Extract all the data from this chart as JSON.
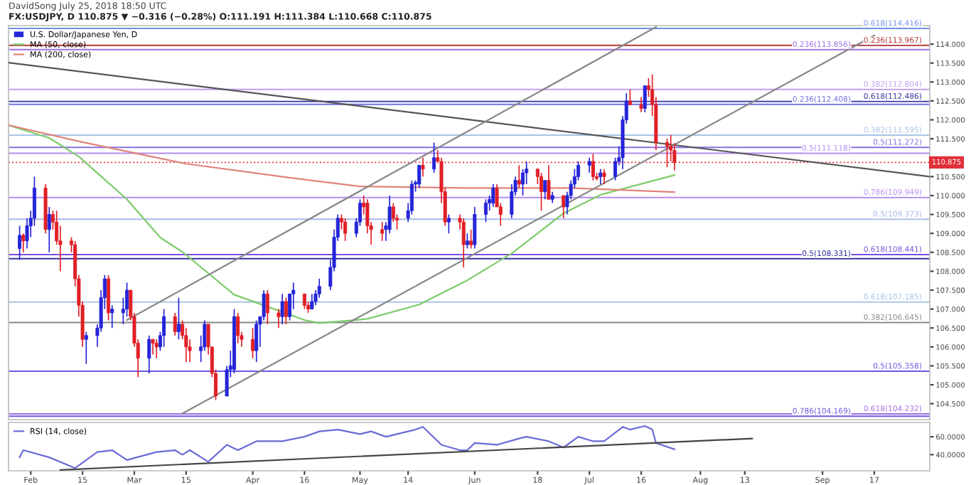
{
  "chart_data": [
    {
      "type": "candlestick",
      "title": "FX:USDJPY, D 110.875 ▼ −0.316 (−0.28%) O:111.191 H:111.384 L:110.668 C:110.875",
      "annotations": [
        "DavidSong July 25, 2018 18:50 UTC"
      ],
      "xlim": [
        "2018-01-26",
        "2018-10-02"
      ],
      "ylim": [
        104.08,
        114.49
      ],
      "yticks": [
        {
          "value": 104.5,
          "label": "104.500"
        },
        {
          "value": 105,
          "label": "105.000"
        },
        {
          "value": 105.5,
          "label": "105.500"
        },
        {
          "value": 106,
          "label": "106.000"
        },
        {
          "value": 106.5,
          "label": "106.500"
        },
        {
          "value": 107,
          "label": "107.000"
        },
        {
          "value": 107.5,
          "label": "107.500"
        },
        {
          "value": 108,
          "label": "108.000"
        },
        {
          "value": 108.5,
          "label": "108.500"
        },
        {
          "value": 109,
          "label": "109.000"
        },
        {
          "value": 109.5,
          "label": "109.500"
        },
        {
          "value": 110,
          "label": "110.000"
        },
        {
          "value": 110.5,
          "label": "110.500"
        },
        {
          "value": 111.5,
          "label": "111.500"
        },
        {
          "value": 112,
          "label": "112.000"
        },
        {
          "value": 112.5,
          "label": "112.500"
        },
        {
          "value": 113,
          "label": "113.000"
        },
        {
          "value": 113.5,
          "label": "113.500"
        },
        {
          "value": 114,
          "label": "114.000"
        }
      ],
      "tick_labels": "y",
      "legend": "top left",
      "series": [
        {
          "type": "candlestick",
          "name": "U.S. Dollar/Japanese Yen, D",
          "x": [
            "2018-01-29",
            "2018-01-30",
            "2018-01-31",
            "2018-02-01",
            "2018-02-02",
            "2018-02-05",
            "2018-02-06",
            "2018-02-07",
            "2018-02-08",
            "2018-02-09",
            "2018-02-12",
            "2018-02-13",
            "2018-02-14",
            "2018-02-15",
            "2018-02-16",
            "2018-02-19",
            "2018-02-20",
            "2018-02-21",
            "2018-02-22",
            "2018-02-23",
            "2018-02-26",
            "2018-02-27",
            "2018-02-28",
            "2018-03-01",
            "2018-03-02",
            "2018-03-05",
            "2018-03-06",
            "2018-03-07",
            "2018-03-08",
            "2018-03-09",
            "2018-03-12",
            "2018-03-13",
            "2018-03-14",
            "2018-03-15",
            "2018-03-16",
            "2018-03-19",
            "2018-03-20",
            "2018-03-21",
            "2018-03-22",
            "2018-03-23",
            "2018-03-26",
            "2018-03-27",
            "2018-03-28",
            "2018-03-29",
            "2018-03-30",
            "2018-04-02",
            "2018-04-03",
            "2018-04-04",
            "2018-04-05",
            "2018-04-06",
            "2018-04-09",
            "2018-04-10",
            "2018-04-11",
            "2018-04-12",
            "2018-04-13",
            "2018-04-16",
            "2018-04-17",
            "2018-04-18",
            "2018-04-19",
            "2018-04-20",
            "2018-04-23",
            "2018-04-24",
            "2018-04-25",
            "2018-04-26",
            "2018-04-27",
            "2018-04-30",
            "2018-05-01",
            "2018-05-02",
            "2018-05-03",
            "2018-05-04",
            "2018-05-07",
            "2018-05-08",
            "2018-05-09",
            "2018-05-10",
            "2018-05-11",
            "2018-05-14",
            "2018-05-15",
            "2018-05-16",
            "2018-05-17",
            "2018-05-18",
            "2018-05-21",
            "2018-05-22",
            "2018-05-23",
            "2018-05-24",
            "2018-05-25",
            "2018-05-28",
            "2018-05-29",
            "2018-05-30",
            "2018-05-31",
            "2018-06-01",
            "2018-06-04",
            "2018-06-05",
            "2018-06-06",
            "2018-06-07",
            "2018-06-08",
            "2018-06-11",
            "2018-06-12",
            "2018-06-13",
            "2018-06-14",
            "2018-06-15",
            "2018-06-18",
            "2018-06-19",
            "2018-06-20",
            "2018-06-21",
            "2018-06-22",
            "2018-06-25",
            "2018-06-26",
            "2018-06-27",
            "2018-06-28",
            "2018-06-29",
            "2018-07-02",
            "2018-07-03",
            "2018-07-04",
            "2018-07-05",
            "2018-07-06",
            "2018-07-09",
            "2018-07-10",
            "2018-07-11",
            "2018-07-12",
            "2018-07-13",
            "2018-07-16",
            "2018-07-17",
            "2018-07-18",
            "2018-07-19",
            "2018-07-20",
            "2018-07-23",
            "2018-07-24",
            "2018-07-25"
          ],
          "ohlc": [
            [
              108.6,
              109.2,
              108.3,
              108.95
            ],
            [
              108.95,
              109.0,
              108.5,
              108.8
            ],
            [
              108.8,
              109.4,
              108.6,
              109.2
            ],
            [
              109.2,
              109.6,
              108.9,
              109.4
            ],
            [
              109.4,
              110.5,
              109.2,
              110.2
            ],
            [
              110.2,
              110.3,
              109.0,
              109.1
            ],
            [
              109.1,
              109.7,
              108.5,
              109.5
            ],
            [
              109.5,
              109.6,
              109.1,
              109.3
            ],
            [
              109.3,
              109.6,
              108.7,
              108.8
            ],
            [
              108.8,
              109.2,
              108.0,
              108.7
            ],
            [
              108.8,
              108.9,
              108.5,
              108.7
            ],
            [
              108.7,
              108.8,
              107.6,
              107.8
            ],
            [
              107.8,
              107.9,
              106.8,
              107.1
            ],
            [
              107.1,
              107.2,
              106.0,
              106.2
            ],
            [
              106.2,
              106.4,
              105.55,
              106.3
            ],
            [
              106.3,
              106.6,
              106.0,
              106.5
            ],
            [
              106.5,
              107.5,
              106.4,
              107.3
            ],
            [
              107.3,
              107.9,
              107.0,
              107.8
            ],
            [
              107.8,
              107.9,
              106.7,
              106.9
            ],
            [
              106.9,
              107.1,
              106.5,
              107.0
            ],
            [
              106.9,
              107.3,
              106.6,
              107.0
            ],
            [
              107.0,
              107.7,
              106.8,
              107.5
            ],
            [
              107.5,
              107.5,
              106.7,
              106.8
            ],
            [
              106.8,
              106.9,
              106.0,
              106.1
            ],
            [
              106.1,
              106.2,
              105.2,
              105.7
            ],
            [
              105.7,
              106.3,
              105.3,
              106.2
            ],
            [
              106.2,
              106.2,
              105.8,
              106.1
            ],
            [
              106.1,
              106.2,
              105.7,
              106.0
            ],
            [
              106.0,
              106.4,
              105.9,
              106.3
            ],
            [
              106.3,
              107.0,
              106.0,
              106.8
            ],
            [
              106.8,
              106.9,
              106.3,
              106.4
            ],
            [
              106.4,
              107.3,
              106.2,
              106.6
            ],
            [
              106.6,
              106.7,
              106.2,
              106.3
            ],
            [
              106.3,
              106.5,
              105.6,
              106.0
            ],
            [
              106.0,
              106.2,
              105.6,
              105.9
            ],
            [
              105.9,
              106.3,
              105.6,
              106.0
            ],
            [
              106.0,
              106.7,
              105.9,
              106.6
            ],
            [
              106.6,
              106.6,
              105.8,
              106.0
            ],
            [
              106.0,
              106.0,
              105.2,
              105.3
            ],
            [
              105.3,
              105.4,
              104.6,
              104.7
            ],
            [
              104.7,
              105.5,
              104.7,
              105.4
            ],
            [
              105.4,
              105.9,
              105.2,
              105.5
            ],
            [
              105.4,
              107.0,
              105.3,
              106.8
            ],
            [
              106.8,
              106.9,
              106.1,
              106.3
            ],
            [
              106.3,
              106.4,
              106.0,
              106.2
            ],
            [
              106.2,
              106.5,
              105.7,
              105.9
            ],
            [
              105.9,
              106.7,
              105.6,
              106.6
            ],
            [
              106.6,
              106.8,
              106.0,
              106.8
            ],
            [
              106.8,
              107.5,
              106.7,
              107.4
            ],
            [
              107.4,
              107.5,
              106.6,
              106.9
            ],
            [
              106.9,
              107.0,
              106.5,
              106.8
            ],
            [
              106.8,
              107.4,
              106.6,
              107.2
            ],
            [
              107.2,
              107.3,
              106.6,
              106.8
            ],
            [
              106.8,
              107.4,
              106.7,
              107.4
            ],
            [
              107.4,
              107.7,
              107.0,
              107.5
            ],
            [
              107.4,
              107.4,
              107.0,
              107.1
            ],
            [
              107.1,
              107.2,
              106.9,
              107.0
            ],
            [
              107.0,
              107.4,
              107.0,
              107.2
            ],
            [
              107.2,
              107.5,
              107.1,
              107.4
            ],
            [
              107.4,
              107.8,
              107.3,
              107.6
            ],
            [
              107.6,
              108.3,
              107.5,
              108.1
            ],
            [
              108.1,
              109.1,
              108.0,
              108.9
            ],
            [
              108.9,
              109.5,
              108.8,
              109.4
            ],
            [
              109.4,
              109.5,
              109.1,
              109.3
            ],
            [
              109.3,
              109.4,
              108.8,
              109.0
            ],
            [
              109.0,
              109.4,
              108.9,
              109.3
            ],
            [
              109.3,
              109.9,
              109.2,
              109.8
            ],
            [
              109.8,
              110.0,
              109.5,
              109.7
            ],
            [
              109.8,
              109.9,
              109.0,
              109.2
            ],
            [
              109.2,
              109.3,
              108.7,
              109.1
            ],
            [
              109.1,
              109.3,
              108.8,
              109.0
            ],
            [
              109.1,
              109.3,
              108.8,
              109.2
            ],
            [
              109.1,
              110.0,
              109.0,
              109.7
            ],
            [
              109.7,
              109.8,
              109.3,
              109.4
            ],
            [
              109.4,
              109.5,
              109.1,
              109.35
            ],
            [
              109.4,
              109.8,
              109.3,
              109.6
            ],
            [
              109.6,
              110.4,
              109.5,
              110.3
            ],
            [
              110.3,
              110.4,
              110.1,
              110.35
            ],
            [
              110.3,
              110.8,
              110.2,
              110.8
            ],
            [
              110.8,
              111.0,
              110.5,
              110.7
            ],
            [
              110.7,
              111.4,
              110.6,
              111.0
            ],
            [
              111.0,
              111.2,
              110.9,
              110.9
            ],
            [
              110.9,
              111.0,
              109.8,
              110.1
            ],
            [
              110.1,
              110.2,
              109.2,
              109.3
            ],
            [
              109.3,
              109.5,
              109.0,
              109.4
            ],
            [
              109.4,
              109.5,
              109.1,
              109.3
            ],
            [
              109.3,
              109.4,
              108.1,
              108.7
            ],
            [
              108.7,
              109.0,
              108.6,
              108.8
            ],
            [
              108.8,
              109.1,
              108.6,
              108.7
            ],
            [
              108.7,
              109.7,
              108.6,
              109.5
            ],
            [
              109.5,
              109.9,
              109.3,
              109.8
            ],
            [
              109.8,
              110.0,
              109.6,
              109.9
            ],
            [
              109.8,
              110.3,
              109.7,
              110.2
            ],
            [
              110.2,
              110.3,
              109.7,
              109.7
            ],
            [
              109.7,
              109.8,
              109.2,
              109.5
            ],
            [
              109.5,
              110.3,
              109.4,
              110.1
            ],
            [
              110.1,
              110.5,
              110.0,
              110.4
            ],
            [
              110.4,
              110.8,
              110.2,
              110.3
            ],
            [
              110.3,
              110.7,
              110.0,
              110.6
            ],
            [
              110.6,
              110.9,
              110.3,
              110.7
            ],
            [
              110.7,
              110.7,
              110.3,
              110.5
            ],
            [
              110.5,
              110.6,
              109.6,
              110.1
            ],
            [
              110.1,
              110.4,
              109.9,
              110.4
            ],
            [
              110.4,
              110.8,
              109.9,
              109.9
            ],
            [
              109.9,
              110.1,
              109.8,
              110.0
            ],
            [
              110.0,
              110.0,
              109.4,
              109.7
            ],
            [
              109.7,
              110.1,
              109.5,
              110.0
            ],
            [
              110.0,
              110.4,
              109.9,
              110.3
            ],
            [
              110.3,
              110.7,
              110.2,
              110.5
            ],
            [
              110.5,
              110.9,
              110.4,
              110.8
            ],
            [
              110.8,
              111.0,
              110.6,
              110.9
            ],
            [
              110.9,
              111.1,
              110.4,
              110.5
            ],
            [
              110.5,
              110.6,
              110.4,
              110.45
            ],
            [
              110.5,
              110.7,
              110.3,
              110.6
            ],
            [
              110.6,
              110.7,
              110.3,
              110.5
            ],
            [
              110.5,
              111.0,
              110.4,
              110.9
            ],
            [
              110.9,
              111.3,
              110.8,
              111.0
            ],
            [
              111.0,
              112.1,
              110.7,
              112.0
            ],
            [
              112.0,
              112.7,
              111.9,
              112.5
            ],
            [
              112.5,
              112.8,
              112.4,
              112.4
            ],
            [
              112.4,
              112.6,
              112.2,
              112.3
            ],
            [
              112.3,
              112.9,
              112.2,
              112.9
            ],
            [
              112.9,
              113.1,
              112.6,
              112.8
            ],
            [
              112.8,
              113.2,
              112.1,
              112.4
            ],
            [
              112.4,
              112.6,
              111.2,
              111.4
            ],
            [
              111.4,
              111.5,
              110.75,
              111.3
            ],
            [
              111.3,
              111.6,
              110.9,
              111.2
            ],
            [
              111.191,
              111.384,
              110.668,
              110.875
            ]
          ],
          "colors": [
            "#2424d8",
            "#e01f26",
            "#2424d8",
            "#2424d8",
            "#2424d8",
            "#e01f26",
            "#2424d8",
            "#e01f26",
            "#e01f26",
            "#e01f26",
            "#e01f26",
            "#e01f26",
            "#e01f26",
            "#e01f26",
            "#2424d8",
            "#2424d8",
            "#2424d8",
            "#2424d8",
            "#e01f26",
            "#2424d8",
            "#2424d8",
            "#2424d8",
            "#e01f26",
            "#e01f26",
            "#e01f26",
            "#2424d8",
            "#e01f26",
            "#e01f26",
            "#2424d8",
            "#2424d8",
            "#e01f26",
            "#2424d8",
            "#e01f26",
            "#e01f26",
            "#e01f26",
            "#2424d8",
            "#2424d8",
            "#e01f26",
            "#e01f26",
            "#e01f26",
            "#2424d8",
            "#2424d8",
            "#2424d8",
            "#e01f26",
            "#e01f26",
            "#e01f26",
            "#2424d8",
            "#2424d8",
            "#2424d8",
            "#e01f26",
            "#e01f26",
            "#2424d8",
            "#e01f26",
            "#2424d8",
            "#2424d8",
            "#e01f26",
            "#e01f26",
            "#2424d8",
            "#2424d8",
            "#2424d8",
            "#2424d8",
            "#2424d8",
            "#2424d8",
            "#e01f26",
            "#e01f26",
            "#2424d8",
            "#2424d8",
            "#e01f26",
            "#e01f26",
            "#e01f26",
            "#e01f26",
            "#2424d8",
            "#2424d8",
            "#e01f26",
            "#e01f26",
            "#2424d8",
            "#2424d8",
            "#2424d8",
            "#2424d8",
            "#e01f26",
            "#2424d8",
            "#e01f26",
            "#e01f26",
            "#e01f26",
            "#2424d8",
            "#e01f26",
            "#e01f26",
            "#2424d8",
            "#e01f26",
            "#2424d8",
            "#2424d8",
            "#2424d8",
            "#2424d8",
            "#e01f26",
            "#e01f26",
            "#2424d8",
            "#2424d8",
            "#e01f26",
            "#2424d8",
            "#2424d8",
            "#e01f26",
            "#e01f26",
            "#2424d8",
            "#e01f26",
            "#2424d8",
            "#e01f26",
            "#2424d8",
            "#2424d8",
            "#2424d8",
            "#2424d8",
            "#2424d8",
            "#e01f26",
            "#e01f26",
            "#2424d8",
            "#e01f26",
            "#2424d8",
            "#2424d8",
            "#2424d8",
            "#2424d8",
            "#e01f26",
            "#e01f26",
            "#2424d8",
            "#e01f26",
            "#e01f26",
            "#e01f26",
            "#e01f26",
            "#e01f26",
            "#e01f26"
          ]
        },
        {
          "type": "line",
          "name": "MA (50, close)",
          "color": "#7ccc6a",
          "x": [
            "2018-01-26",
            "2018-02-06",
            "2018-02-14",
            "2018-02-27",
            "2018-03-08",
            "2018-03-14",
            "2018-03-28",
            "2018-04-16",
            "2018-04-20",
            "2018-05-03",
            "2018-05-17",
            "2018-05-30",
            "2018-06-11",
            "2018-06-25",
            "2018-07-05",
            "2018-07-25"
          ],
          "values": [
            111.86,
            111.52,
            111.03,
            109.9,
            108.89,
            108.51,
            107.38,
            106.71,
            106.63,
            106.74,
            107.12,
            107.76,
            108.47,
            109.53,
            110.02,
            110.54
          ]
        },
        {
          "type": "line",
          "name": "MA (200, close)",
          "color": "#e0837a",
          "x": [
            "2018-01-26",
            "2018-02-15",
            "2018-03-15",
            "2018-04-12",
            "2018-05-01",
            "2018-05-30",
            "2018-06-27",
            "2018-07-25"
          ],
          "values": [
            111.86,
            111.41,
            110.84,
            110.47,
            110.24,
            110.2,
            110.2,
            110.09
          ]
        },
        {
          "type": "line",
          "color": "#555555",
          "x": [
            "2018-01-26",
            "2018-10-02"
          ],
          "values": [
            113.51,
            110.5
          ]
        },
        {
          "type": "line",
          "color": "#888888",
          "x": [
            "2018-02-27",
            "2018-07-20"
          ],
          "values": [
            106.71,
            114.45
          ]
        },
        {
          "type": "line",
          "color": "#888888",
          "x": [
            "2018-03-14",
            "2018-09-17"
          ],
          "values": [
            104.24,
            114.23
          ]
        }
      ],
      "ref_lines": [
        {
          "axis": "y",
          "value": 114.416,
          "label": "0.618(114.416)",
          "color": "#6f8fe8"
        },
        {
          "axis": "y",
          "value": 113.967,
          "label": "0.236(113.967)",
          "color": "#b03a3a"
        },
        {
          "axis": "y",
          "value": 113.856,
          "label": "0.236(113.856)",
          "color": "#a070e0"
        },
        {
          "axis": "y",
          "value": 112.804,
          "label": "0.382(112.804)",
          "color": "#c39ef0"
        },
        {
          "axis": "y",
          "value": 112.486,
          "label": "0.618(112.486)",
          "color": "#3030a0"
        },
        {
          "axis": "y",
          "value": 112.408,
          "label": "0.236(112.408)",
          "color": "#7070e0"
        },
        {
          "axis": "y",
          "value": 111.595,
          "label": "0.382(111.595)",
          "color": "#a8c4e8"
        },
        {
          "axis": "y",
          "value": 111.272,
          "label": "0.5(111.272)",
          "color": "#8a70e0"
        },
        {
          "axis": "y",
          "value": 111.118,
          "label": "0.5(111.118)",
          "color": "#b48cf0"
        },
        {
          "axis": "y",
          "value": 109.949,
          "label": "0.786(109.949)",
          "color": "#b48cf0"
        },
        {
          "axis": "y",
          "value": 109.373,
          "label": "0.5(109.373)",
          "color": "#a8b8e8"
        },
        {
          "axis": "y",
          "value": 108.441,
          "label": "0.618(108.441)",
          "color": "#7a50e0"
        },
        {
          "axis": "y",
          "value": 108.331,
          "label": "0.5(108.331)",
          "color": "#3030a0"
        },
        {
          "axis": "y",
          "value": 107.185,
          "label": "0.618(107.185)",
          "color": "#a8c4e8"
        },
        {
          "axis": "y",
          "value": 106.645,
          "label": "0.382(106.645)",
          "color": "#888888"
        },
        {
          "axis": "y",
          "value": 105.358,
          "label": "0.5(105.358)",
          "color": "#6a5ae0"
        },
        {
          "axis": "y",
          "value": 104.232,
          "label": "0.618(104.232)",
          "color": "#a070e0"
        },
        {
          "axis": "y",
          "value": 104.169,
          "label": "0.786(104.169)",
          "color": "#6a5ae0"
        },
        {
          "axis": "y",
          "value": 110.875,
          "label": "110.875",
          "color": "#e0303a",
          "line_style": "dotted"
        }
      ]
    },
    {
      "type": "line",
      "legend": "top left",
      "xlim": [
        "2018-01-26",
        "2018-10-02"
      ],
      "ylim": [
        22,
        76
      ],
      "yticks": [
        {
          "value": 60,
          "label": "60.0000"
        },
        {
          "value": 40,
          "label": "40.0000"
        }
      ],
      "xticks": [
        {
          "value": "2018-02-01",
          "label": "Feb"
        },
        {
          "value": "2018-02-15",
          "label": "15"
        },
        {
          "value": "2018-03-01",
          "label": "Mar"
        },
        {
          "value": "2018-03-15",
          "label": "15"
        },
        {
          "value": "2018-04-02",
          "label": "Apr"
        },
        {
          "value": "2018-04-16",
          "label": "16"
        },
        {
          "value": "2018-05-01",
          "label": "May"
        },
        {
          "value": "2018-05-14",
          "label": "14"
        },
        {
          "value": "2018-06-01",
          "label": "Jun"
        },
        {
          "value": "2018-06-18",
          "label": "18"
        },
        {
          "value": "2018-07-02",
          "label": "Jul"
        },
        {
          "value": "2018-07-16",
          "label": "16"
        },
        {
          "value": "2018-08-01",
          "label": "Aug"
        },
        {
          "value": "2018-08-13",
          "label": "13"
        },
        {
          "value": "2018-09-03",
          "label": "Sep"
        },
        {
          "value": "2018-09-17",
          "label": "17"
        }
      ],
      "series": [
        {
          "name": "RSI (14, close)",
          "color": "#6b6bd6",
          "x": [
            "2018-01-29",
            "2018-01-30",
            "2018-02-06",
            "2018-02-13",
            "2018-02-19",
            "2018-02-23",
            "2018-02-27",
            "2018-03-07",
            "2018-03-12",
            "2018-03-14",
            "2018-03-16",
            "2018-03-21",
            "2018-03-26",
            "2018-03-29",
            "2018-04-03",
            "2018-04-10",
            "2018-04-16",
            "2018-04-20",
            "2018-04-25",
            "2018-05-01",
            "2018-05-04",
            "2018-05-08",
            "2018-05-16",
            "2018-05-18",
            "2018-05-23",
            "2018-05-28",
            "2018-05-30",
            "2018-06-01",
            "2018-06-07",
            "2018-06-13",
            "2018-06-15",
            "2018-06-21",
            "2018-06-25",
            "2018-06-29",
            "2018-07-03",
            "2018-07-06",
            "2018-07-11",
            "2018-07-13",
            "2018-07-17",
            "2018-07-19",
            "2018-07-20",
            "2018-07-25"
          ],
          "values": [
            37,
            45,
            37,
            25,
            43,
            45,
            34,
            43,
            45,
            40,
            45,
            32,
            51,
            45,
            55,
            55,
            60,
            66,
            68,
            63,
            66,
            60,
            68,
            71,
            51,
            45,
            45,
            53,
            51,
            58,
            60,
            55,
            48,
            60,
            55,
            55,
            71,
            68,
            72,
            68,
            53,
            46
          ]
        },
        {
          "type": "line",
          "color": "#444444",
          "x": [
            "2018-02-09",
            "2018-08-15"
          ],
          "values": [
            23,
            58
          ]
        }
      ]
    }
  ]
}
